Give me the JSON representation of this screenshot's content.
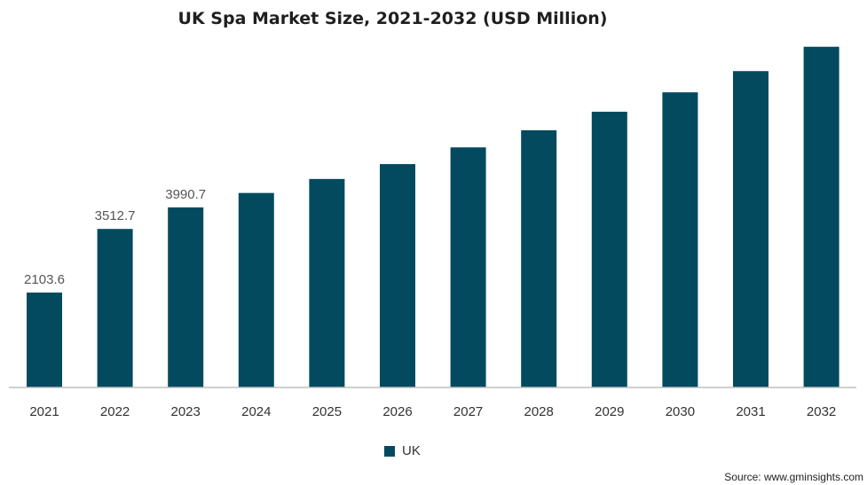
{
  "chart_data": {
    "type": "bar",
    "title": "UK Spa Market Size, 2021-2032 (USD Million)",
    "categories": [
      "2021",
      "2022",
      "2023",
      "2024",
      "2025",
      "2026",
      "2027",
      "2028",
      "2029",
      "2030",
      "2031",
      "2032"
    ],
    "series": [
      {
        "name": "UK",
        "values": [
          2103.6,
          3512.7,
          3990.7,
          4310,
          4620,
          4950,
          5320,
          5700,
          6110,
          6540,
          7010,
          7550
        ],
        "data_labels": [
          "2103.6",
          "3512.7",
          "3990.7",
          null,
          null,
          null,
          null,
          null,
          null,
          null,
          null,
          null
        ]
      }
    ],
    "ylim": [
      0,
      7800
    ],
    "xlabel": "",
    "ylabel": "",
    "grid": false,
    "legend_position": "bottom",
    "bar_color": "#034a5e",
    "axis_color": "#bfbfbf"
  },
  "source": "Source: www.gminsights.com"
}
